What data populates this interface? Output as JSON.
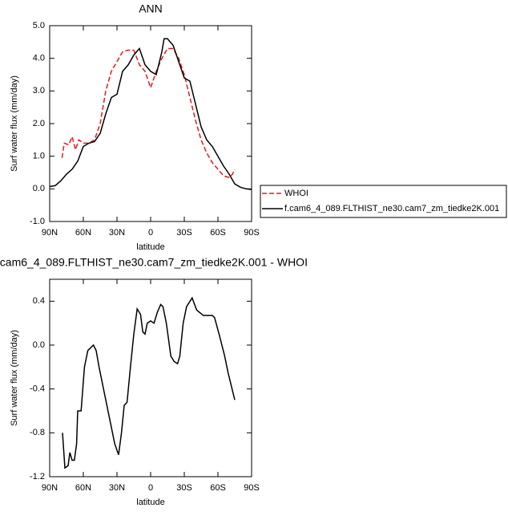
{
  "chart_data": [
    {
      "type": "line",
      "title": "ANN",
      "xlabel": "latitude",
      "ylabel": "Surf water flux (mm/day)",
      "xlim": [
        90,
        -90
      ],
      "xticks": [
        {
          "value": 90,
          "label": "90N"
        },
        {
          "value": 60,
          "label": "60N"
        },
        {
          "value": 30,
          "label": "30N"
        },
        0,
        {
          "value": -30,
          "label": "30S"
        },
        {
          "value": -60,
          "label": "60S"
        },
        {
          "value": -90,
          "label": "90S"
        }
      ],
      "ylim": [
        -1.0,
        5.0
      ],
      "yticks": [
        {
          "value": -1.0,
          "label": "-1.0"
        },
        {
          "value": 0.0,
          "label": "0.0"
        },
        {
          "value": 1.0,
          "label": "1.0"
        },
        {
          "value": 2.0,
          "label": "2.0"
        },
        {
          "value": 3.0,
          "label": "3.0"
        },
        {
          "value": 4.0,
          "label": "4.0"
        },
        {
          "value": 5.0,
          "label": "5.0"
        }
      ],
      "legend": "right",
      "series": [
        {
          "name": "WHOI",
          "color": "#e41a1c",
          "dashed": true,
          "x": [
            79,
            77,
            73,
            70,
            67,
            64,
            60,
            55,
            50,
            45,
            40,
            35,
            30,
            25,
            20,
            15,
            10,
            5,
            0,
            -5,
            -10,
            -15,
            -20,
            -25,
            -30,
            -35,
            -40,
            -45,
            -50,
            -55,
            -60,
            -65,
            -70,
            -73,
            -75
          ],
          "values": [
            0.95,
            1.4,
            1.35,
            1.6,
            1.2,
            1.5,
            1.4,
            1.4,
            1.5,
            2.0,
            3.0,
            3.6,
            3.9,
            4.2,
            4.25,
            4.25,
            3.8,
            3.6,
            3.1,
            3.6,
            4.0,
            4.3,
            4.3,
            4.0,
            3.5,
            2.8,
            2.1,
            1.5,
            1.1,
            0.8,
            0.6,
            0.4,
            0.35,
            0.45,
            0.6
          ]
        },
        {
          "name": "f.cam6_4_089.FLTHIST_ne30.cam7_zm_tiedke2K.001",
          "color": "#000000",
          "dashed": false,
          "x": [
            90,
            85,
            80,
            75,
            70,
            65,
            60,
            55,
            50,
            45,
            40,
            35,
            30,
            25,
            20,
            15,
            10,
            5,
            0,
            -5,
            -10,
            -12,
            -15,
            -20,
            -25,
            -30,
            -35,
            -40,
            -45,
            -50,
            -55,
            -60,
            -65,
            -70,
            -75,
            -80,
            -85,
            -90
          ],
          "values": [
            0.07,
            0.1,
            0.25,
            0.45,
            0.6,
            0.85,
            1.3,
            1.4,
            1.45,
            1.7,
            2.3,
            2.8,
            2.9,
            3.6,
            3.8,
            4.1,
            4.3,
            3.8,
            3.6,
            3.5,
            4.2,
            4.6,
            4.6,
            4.4,
            3.9,
            3.4,
            3.3,
            2.6,
            1.9,
            1.5,
            1.3,
            1.0,
            0.7,
            0.45,
            0.15,
            0.05,
            0.0,
            -0.02
          ]
        }
      ]
    },
    {
      "type": "line",
      "title": "f.cam6_4_089.FLTHIST_ne30.cam7_zm_tiedke2K.001 - WHOI",
      "xlabel": "latitude",
      "ylabel": "Surf water flux (mm/day)",
      "xlim": [
        90,
        -90
      ],
      "xticks": [
        {
          "value": 90,
          "label": "90N"
        },
        {
          "value": 60,
          "label": "60N"
        },
        {
          "value": 30,
          "label": "30N"
        },
        0,
        {
          "value": -30,
          "label": "30S"
        },
        {
          "value": -60,
          "label": "60S"
        },
        {
          "value": -90,
          "label": "90S"
        }
      ],
      "ylim": [
        -1.2,
        0.6
      ],
      "yticks": [
        {
          "value": -1.2,
          "label": "-1.2"
        },
        {
          "value": -0.8,
          "label": "-0.8"
        },
        {
          "value": -0.4,
          "label": "-0.4"
        },
        {
          "value": 0.0,
          "label": "0.0"
        },
        {
          "value": 0.4,
          "label": "0.4"
        }
      ],
      "series": [
        {
          "color": "#000000",
          "dashed": false,
          "x": [
            78.6,
            76.4,
            73.6,
            72,
            70,
            68,
            66,
            65,
            62,
            59,
            56,
            53,
            51,
            48.6,
            46,
            41,
            36,
            32,
            28.6,
            26,
            23.6,
            21,
            18,
            15,
            12,
            9,
            7,
            5,
            3,
            0,
            -3,
            -6,
            -9,
            -11,
            -14,
            -16,
            -18,
            -21,
            -24,
            -26,
            -29,
            -32,
            -37,
            -41,
            -47,
            -55,
            -57,
            -61,
            -66,
            -69,
            -75
          ],
          "values": [
            -0.8,
            -1.12,
            -1.1,
            -0.98,
            -1.05,
            -1.05,
            -0.9,
            -0.6,
            -0.6,
            -0.2,
            -0.05,
            -0.02,
            0.0,
            -0.05,
            -0.2,
            -0.45,
            -0.7,
            -0.9,
            -1.0,
            -0.8,
            -0.55,
            -0.52,
            -0.2,
            0.1,
            0.33,
            0.28,
            0.12,
            0.1,
            0.2,
            0.22,
            0.2,
            0.3,
            0.37,
            0.35,
            0.2,
            0.05,
            -0.1,
            -0.15,
            -0.17,
            -0.1,
            0.2,
            0.35,
            0.43,
            0.32,
            0.27,
            0.27,
            0.25,
            0.1,
            -0.1,
            -0.25,
            -0.5
          ]
        }
      ]
    }
  ]
}
